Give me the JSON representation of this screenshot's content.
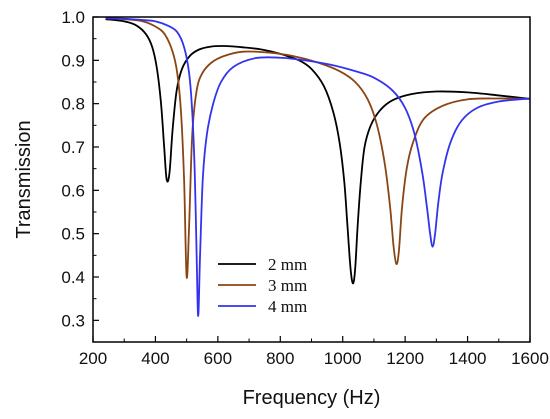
{
  "chart_data": {
    "type": "line",
    "title": "",
    "xlabel": "Frequency (Hz)",
    "ylabel": "Transmission",
    "xlim": [
      200,
      1600
    ],
    "ylim": [
      0.25,
      1.0
    ],
    "xticks": [
      200,
      400,
      600,
      800,
      1000,
      1200,
      1400,
      1600
    ],
    "xtick_labels": [
      "200",
      "400",
      "600",
      "800",
      "1000",
      "1200",
      "1400",
      "1600"
    ],
    "yticks": [
      0.3,
      0.4,
      0.5,
      0.6,
      0.7,
      0.8,
      0.9,
      1.0
    ],
    "ytick_labels": [
      "0.3",
      "0.4",
      "0.5",
      "0.6",
      "0.7",
      "0.8",
      "0.9",
      "1.0"
    ],
    "grid": false,
    "legend_position": "bottom-center",
    "series": [
      {
        "name": "2 mm",
        "color": "#000000",
        "x": [
          240,
          300,
          340,
          370,
          390,
          405,
          418,
          428,
          436,
          445,
          455,
          468,
          485,
          510,
          540,
          580,
          620,
          680,
          740,
          800,
          860,
          900,
          940,
          970,
          990,
          1005,
          1015,
          1025,
          1033,
          1040,
          1048,
          1058,
          1070,
          1090,
          1120,
          1160,
          1220,
          1300,
          1400,
          1500,
          1600
        ],
        "y": [
          0.995,
          0.99,
          0.98,
          0.96,
          0.93,
          0.88,
          0.8,
          0.7,
          0.625,
          0.64,
          0.74,
          0.83,
          0.88,
          0.91,
          0.925,
          0.932,
          0.933,
          0.93,
          0.925,
          0.915,
          0.9,
          0.88,
          0.84,
          0.78,
          0.71,
          0.62,
          0.52,
          0.42,
          0.385,
          0.42,
          0.52,
          0.62,
          0.7,
          0.75,
          0.785,
          0.808,
          0.822,
          0.828,
          0.826,
          0.819,
          0.811
        ]
      },
      {
        "name": "3 mm",
        "color": "#8B4513",
        "x": [
          240,
          300,
          360,
          400,
          430,
          455,
          470,
          482,
          492,
          500,
          508,
          518,
          532,
          550,
          580,
          620,
          680,
          760,
          840,
          920,
          990,
          1040,
          1080,
          1110,
          1135,
          1152,
          1163,
          1172,
          1180,
          1190,
          1205,
          1225,
          1260,
          1320,
          1400,
          1500,
          1600
        ],
        "y": [
          0.997,
          0.995,
          0.99,
          0.978,
          0.96,
          0.92,
          0.87,
          0.78,
          0.62,
          0.4,
          0.52,
          0.73,
          0.83,
          0.87,
          0.895,
          0.91,
          0.92,
          0.918,
          0.91,
          0.895,
          0.875,
          0.85,
          0.81,
          0.75,
          0.66,
          0.56,
          0.47,
          0.43,
          0.46,
          0.56,
          0.65,
          0.71,
          0.765,
          0.795,
          0.81,
          0.812,
          0.811
        ]
      },
      {
        "name": "4 mm",
        "color": "#3333ee",
        "x": [
          240,
          300,
          360,
          400,
          440,
          470,
          492,
          508,
          518,
          526,
          532,
          537,
          543,
          552,
          565,
          585,
          610,
          650,
          720,
          800,
          880,
          960,
          1040,
          1100,
          1160,
          1200,
          1230,
          1255,
          1270,
          1280,
          1288,
          1296,
          1306,
          1320,
          1345,
          1380,
          1430,
          1500,
          1600
        ],
        "y": [
          0.997,
          0.996,
          0.993,
          0.99,
          0.98,
          0.965,
          0.93,
          0.87,
          0.78,
          0.64,
          0.45,
          0.31,
          0.45,
          0.63,
          0.73,
          0.8,
          0.85,
          0.885,
          0.905,
          0.906,
          0.9,
          0.89,
          0.875,
          0.86,
          0.83,
          0.79,
          0.73,
          0.64,
          0.56,
          0.5,
          0.47,
          0.5,
          0.57,
          0.64,
          0.71,
          0.76,
          0.79,
          0.805,
          0.812
        ]
      }
    ]
  }
}
